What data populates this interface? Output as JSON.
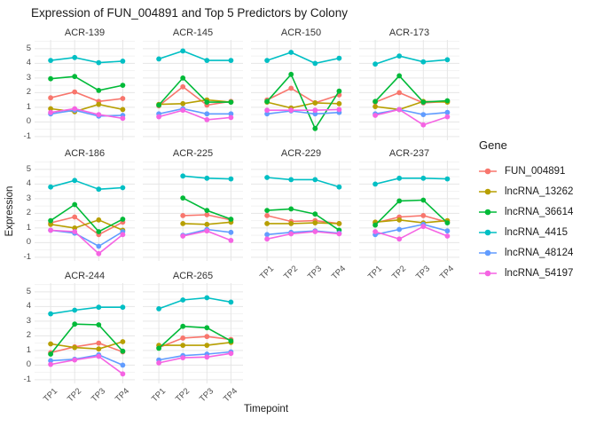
{
  "chart_data": {
    "type": "line",
    "title": "Expression of FUN_004891 and Top 5 Predictors by Colony",
    "xlabel": "Timepoint",
    "ylabel": "Expression",
    "legend_title": "Gene",
    "legend_position": "right",
    "grid": true,
    "x_categories": [
      "TP1",
      "TP2",
      "TP3",
      "TP4"
    ],
    "x_tick_rotation_deg": 45,
    "yticks": [
      5,
      4,
      3,
      2,
      1,
      0,
      -1
    ],
    "ylim": [
      -1.25,
      5.6
    ],
    "colors": {
      "major_grid": "#e6e6e6",
      "minor_grid": "#f2f2f2",
      "tick_text": "#4d4d4d",
      "strip_text": "#333333"
    },
    "series": [
      {
        "name": "FUN_004891",
        "color": "#F8766D"
      },
      {
        "name": "lncRNA_13262",
        "color": "#B79F00"
      },
      {
        "name": "lncRNA_36614",
        "color": "#00BA38"
      },
      {
        "name": "lncRNA_4415",
        "color": "#00BFC4"
      },
      {
        "name": "lncRNA_48124",
        "color": "#619CFF"
      },
      {
        "name": "lncRNA_54197",
        "color": "#F564E3"
      }
    ],
    "facets": [
      {
        "colony": "ACR-139",
        "values": {
          "FUN_004891": [
            1.65,
            2.05,
            1.4,
            1.6
          ],
          "lncRNA_13262": [
            0.9,
            0.7,
            1.2,
            0.85
          ],
          "lncRNA_36614": [
            2.95,
            3.1,
            2.15,
            2.5
          ],
          "lncRNA_4415": [
            4.2,
            4.4,
            4.05,
            4.15
          ],
          "lncRNA_48124": [
            0.55,
            0.8,
            0.4,
            0.45
          ],
          "lncRNA_54197": [
            0.65,
            0.9,
            0.5,
            0.25
          ]
        }
      },
      {
        "colony": "ACR-145",
        "values": {
          "FUN_004891": [
            1.1,
            2.4,
            1.15,
            1.4
          ],
          "lncRNA_13262": [
            1.2,
            1.25,
            1.5,
            1.35
          ],
          "lncRNA_36614": [
            1.15,
            3.0,
            1.35,
            1.35
          ],
          "lncRNA_4415": [
            4.3,
            4.85,
            4.2,
            4.2
          ],
          "lncRNA_48124": [
            0.55,
            0.9,
            0.55,
            0.55
          ],
          "lncRNA_54197": [
            0.35,
            0.8,
            0.15,
            0.3
          ]
        }
      },
      {
        "colony": "ACR-150",
        "values": {
          "FUN_004891": [
            1.5,
            2.3,
            1.3,
            1.85
          ],
          "lncRNA_13262": [
            1.35,
            0.95,
            1.3,
            1.25
          ],
          "lncRNA_36614": [
            1.4,
            3.25,
            -0.45,
            2.1
          ],
          "lncRNA_4415": [
            4.2,
            4.75,
            4.0,
            4.35
          ],
          "lncRNA_48124": [
            0.55,
            0.75,
            0.55,
            0.65
          ],
          "lncRNA_54197": [
            0.8,
            0.8,
            0.8,
            0.85
          ]
        }
      },
      {
        "colony": "ACR-173",
        "values": {
          "FUN_004891": [
            1.35,
            2.0,
            1.3,
            1.4
          ],
          "lncRNA_13262": [
            1.05,
            0.85,
            1.4,
            1.35
          ],
          "lncRNA_36614": [
            1.4,
            3.15,
            1.35,
            1.45
          ],
          "lncRNA_4415": [
            3.95,
            4.5,
            4.1,
            4.25
          ],
          "lncRNA_48124": [
            0.55,
            0.85,
            0.5,
            0.65
          ],
          "lncRNA_54197": [
            0.45,
            0.85,
            -0.2,
            0.35
          ]
        }
      },
      {
        "colony": "ACR-186",
        "values": {
          "FUN_004891": [
            1.35,
            1.75,
            0.55,
            1.4
          ],
          "lncRNA_13262": [
            1.25,
            1.0,
            1.55,
            0.85
          ],
          "lncRNA_36614": [
            1.5,
            2.6,
            0.75,
            1.6
          ],
          "lncRNA_4415": [
            3.8,
            4.25,
            3.65,
            3.75
          ],
          "lncRNA_48124": [
            0.85,
            0.65,
            -0.25,
            0.75
          ],
          "lncRNA_54197": [
            0.85,
            0.75,
            -0.75,
            0.55
          ]
        }
      },
      {
        "colony": "ACR-225",
        "values": {
          "FUN_004891": [
            null,
            1.85,
            1.9,
            1.55
          ],
          "lncRNA_13262": [
            null,
            1.3,
            1.25,
            1.4
          ],
          "lncRNA_36614": [
            null,
            3.05,
            2.2,
            1.6
          ],
          "lncRNA_4415": [
            null,
            4.55,
            4.4,
            4.35
          ],
          "lncRNA_48124": [
            null,
            0.5,
            0.9,
            0.7
          ],
          "lncRNA_54197": [
            null,
            0.45,
            0.8,
            0.15
          ]
        }
      },
      {
        "colony": "ACR-229",
        "values": {
          "FUN_004891": [
            1.85,
            1.45,
            1.5,
            1.3
          ],
          "lncRNA_13262": [
            1.3,
            1.3,
            1.35,
            1.3
          ],
          "lncRNA_36614": [
            2.2,
            2.3,
            1.95,
            0.85
          ],
          "lncRNA_4415": [
            4.45,
            4.3,
            4.3,
            3.8
          ],
          "lncRNA_48124": [
            0.55,
            0.7,
            0.8,
            0.65
          ],
          "lncRNA_54197": [
            0.25,
            0.6,
            0.75,
            0.6
          ]
        }
      },
      {
        "colony": "ACR-237",
        "values": {
          "FUN_004891": [
            1.35,
            1.75,
            1.85,
            1.4
          ],
          "lncRNA_13262": [
            1.4,
            1.55,
            1.35,
            1.5
          ],
          "lncRNA_36614": [
            1.2,
            2.85,
            2.9,
            1.35
          ],
          "lncRNA_4415": [
            4.0,
            4.4,
            4.4,
            4.35
          ],
          "lncRNA_48124": [
            0.55,
            0.9,
            1.25,
            0.8
          ],
          "lncRNA_54197": [
            0.75,
            0.25,
            1.1,
            0.45
          ]
        }
      },
      {
        "colony": "ACR-244",
        "values": {
          "FUN_004891": [
            0.85,
            1.25,
            1.5,
            0.9
          ],
          "lncRNA_13262": [
            1.45,
            1.2,
            1.1,
            1.6
          ],
          "lncRNA_36614": [
            0.75,
            2.8,
            2.75,
            0.95
          ],
          "lncRNA_4415": [
            3.5,
            3.75,
            3.95,
            3.95
          ],
          "lncRNA_48124": [
            0.3,
            0.4,
            0.7,
            0.0
          ],
          "lncRNA_54197": [
            0.05,
            0.35,
            0.6,
            -0.6
          ]
        }
      },
      {
        "colony": "ACR-265",
        "values": {
          "FUN_004891": [
            1.2,
            1.85,
            1.95,
            1.75
          ],
          "lncRNA_13262": [
            1.35,
            1.35,
            1.35,
            1.55
          ],
          "lncRNA_36614": [
            1.15,
            2.65,
            2.55,
            1.65
          ],
          "lncRNA_4415": [
            3.85,
            4.45,
            4.6,
            4.3
          ],
          "lncRNA_48124": [
            0.35,
            0.65,
            0.75,
            0.9
          ],
          "lncRNA_54197": [
            0.15,
            0.5,
            0.55,
            0.8
          ]
        }
      }
    ]
  }
}
